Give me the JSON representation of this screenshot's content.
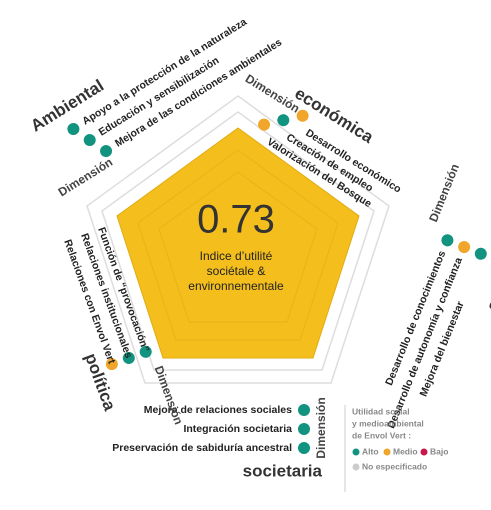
{
  "center": {
    "value": "0.73",
    "label": [
      "Indice d’utilité",
      "sociétale &",
      "environnementale"
    ]
  },
  "dimensions": [
    {
      "title": [
        "Dimensión",
        "económica"
      ],
      "items": [
        {
          "text": "Desarrollo económico",
          "color": "#f0a62a"
        },
        {
          "text": "Creación de empleo",
          "color": "#12937f"
        },
        {
          "text": "Valorización del Bosque",
          "color": "#f0a62a"
        }
      ]
    },
    {
      "title": [
        "Dimensión",
        "social"
      ],
      "items": [
        {
          "text": "Desarrollo de conocimientos",
          "color": "#12937f"
        },
        {
          "text": "Desarrollo de autonomía y confianza",
          "color": "#f0a62a"
        },
        {
          "text": "Mejora del bienestar",
          "color": "#12937f"
        }
      ]
    },
    {
      "title": [
        "Dimensión",
        "societaria"
      ],
      "items": [
        {
          "text": "Mejora de relaciones sociales",
          "color": "#12937f"
        },
        {
          "text": "Integración societaria",
          "color": "#12937f"
        },
        {
          "text": "Preservación de sabiduría ancestral",
          "color": "#12937f"
        }
      ]
    },
    {
      "title": [
        "Dimensión",
        "política"
      ],
      "items": [
        {
          "text": "Función de “provocación”",
          "color": "#12937f"
        },
        {
          "text": "Relaciones institucionales",
          "color": "#12937f"
        },
        {
          "text": "Relaciones con Envol Vert",
          "color": "#f0a62a"
        }
      ]
    },
    {
      "title": [
        "Dimensión",
        "Ambiental"
      ],
      "items": [
        {
          "text": "Apoyo a la protección de la naturaleza",
          "color": "#12937f"
        },
        {
          "text": "Educación y sensibilización",
          "color": "#12937f"
        },
        {
          "text": "Mejora de las condiciones ambientales",
          "color": "#12937f"
        }
      ]
    }
  ],
  "legend": {
    "title": [
      "Utilidad social",
      "y medioambiental",
      "de Envol Vert :"
    ],
    "entries": [
      {
        "label": "Alto",
        "color": "#12937f"
      },
      {
        "label": "Medio",
        "color": "#f0a62a"
      },
      {
        "label": "Bajo",
        "color": "#c8174f"
      },
      {
        "label": "No especificado",
        "color": "#cccccc"
      }
    ]
  }
}
